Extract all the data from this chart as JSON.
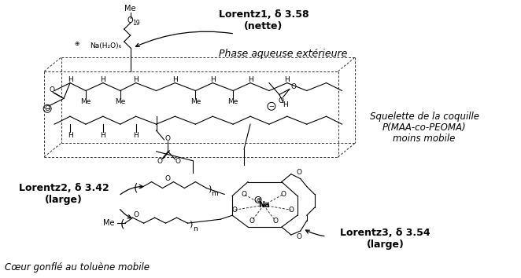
{
  "fig_width": 6.62,
  "fig_height": 3.54,
  "bg_color": "#ffffff",
  "labels": {
    "lorentz1": "Lorentz1, δ 3.58\n(nette)",
    "lorentz2": "Lorentz2, δ 3.42\n(large)",
    "lorentz3": "Lorentz3, δ 3.54\n(large)",
    "phase": "Phase aqueuse extérieure",
    "squelette_line1": "Squelette de la coquille",
    "squelette_line2": "P(MAA-co-PEOMA)",
    "squelette_line3": "moins mobile",
    "coeur": "Cœur gonflé au toluène mobile"
  }
}
